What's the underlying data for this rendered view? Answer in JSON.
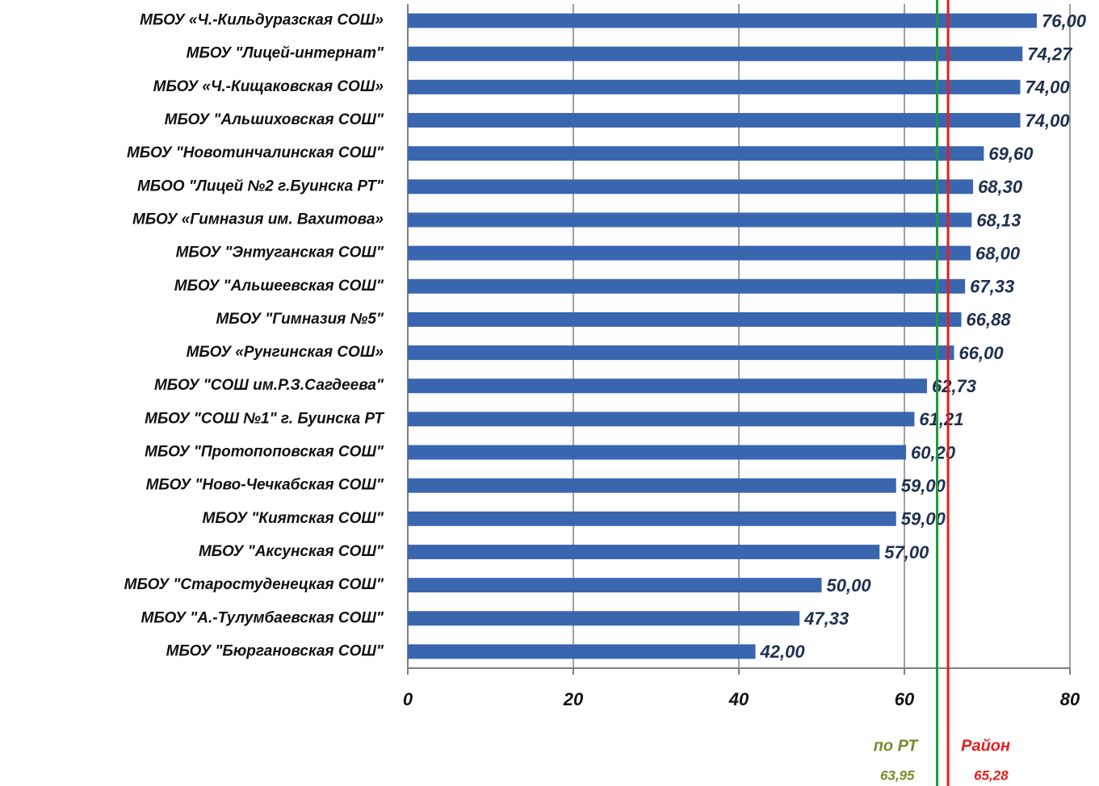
{
  "chart_data": {
    "type": "barh",
    "categories": [
      "МБОУ «Ч.-Кильдуразская СОШ»",
      "МБОУ \"Лицей-интернат\"",
      "МБОУ «Ч.-Кищаковская СОШ»",
      "МБОУ \"Альшиховская СОШ\"",
      "МБОУ \"Новотинчалинская СОШ\"",
      "МБОО \"Лицей №2 г.Буинска РТ\"",
      "МБОУ «Гимназия им. Вахитова»",
      "МБОУ \"Энтуганская СОШ\"",
      "МБОУ \"Альшеевская СОШ\"",
      "МБОУ \"Гимназия №5\"",
      "МБОУ «Рунгинская СОШ»",
      "МБОУ \"СОШ им.Р.З.Сагдеева\"",
      "МБОУ \"СОШ №1\" г. Буинска РТ",
      "МБОУ \"Протопоповская СОШ\"",
      "МБОУ \"Ново-Чечкабская СОШ\"",
      "МБОУ \"Киятская СОШ\"",
      "МБОУ \"Аксунская СОШ\"",
      "МБОУ \"Старостуденецкая СОШ\"",
      "МБОУ \"А.-Тулумбаевская СОШ\"",
      "МБОУ \"Бюргановская СОШ\""
    ],
    "values": [
      76.0,
      74.27,
      74.0,
      74.0,
      69.6,
      68.3,
      68.13,
      68.0,
      67.33,
      66.88,
      66.0,
      62.73,
      61.21,
      60.2,
      59.0,
      59.0,
      57.0,
      50.0,
      47.33,
      42.0
    ],
    "value_labels": [
      "76,00",
      "74,27",
      "74,00",
      "74,00",
      "69,60",
      "68,30",
      "68,13",
      "68,00",
      "67,33",
      "66,88",
      "66,00",
      "62,73",
      "61,21",
      "60,20",
      "59,00",
      "59,00",
      "57,00",
      "50,00",
      "47,33",
      "42,00"
    ],
    "color": "#3a66b0",
    "xlim": [
      0,
      80
    ],
    "xticks": [
      0,
      20,
      40,
      60,
      80
    ],
    "grid": true,
    "reference_lines": [
      {
        "name": "по РТ",
        "value": 63.95,
        "value_label": "63,95",
        "color": "#1c9a3c",
        "label_color": "#7a8a2a"
      },
      {
        "name": "Район",
        "value": 65.28,
        "value_label": "65,28",
        "color": "#e81c1c",
        "label_color": "#e81c1c"
      }
    ]
  }
}
